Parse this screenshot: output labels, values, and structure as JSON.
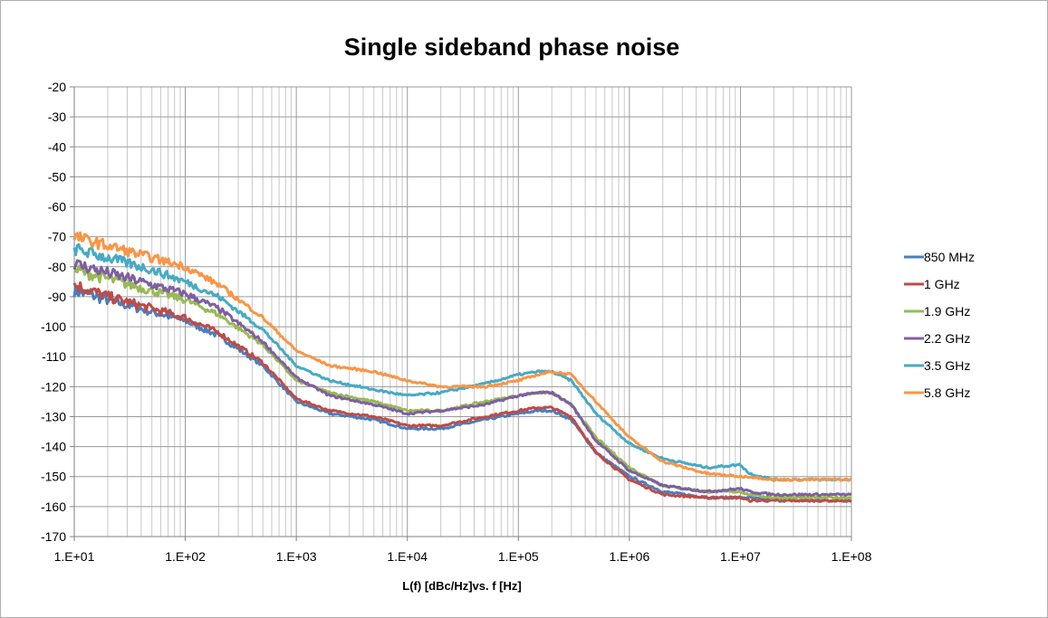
{
  "chart_data": {
    "type": "line",
    "title": "Single sideband phase noise",
    "xlabel": "L(f) [dBc/Hz]vs. f [Hz]",
    "ylabel": "",
    "x_scale": "log",
    "xlim": [
      10,
      100000000
    ],
    "ylim": [
      -170,
      -20
    ],
    "x_tick_labels": [
      "1.E+01",
      "1.E+02",
      "1.E+03",
      "1.E+04",
      "1.E+05",
      "1.E+06",
      "1.E+07",
      "1.E+08"
    ],
    "y_ticks": [
      -20,
      -30,
      -40,
      -50,
      -60,
      -70,
      -80,
      -90,
      -100,
      -110,
      -120,
      -130,
      -140,
      -150,
      -160,
      -170
    ],
    "grid": true,
    "legend_position": "right",
    "x": [
      10,
      20,
      50,
      100,
      200,
      500,
      1000,
      2000,
      5000,
      10000,
      20000,
      50000,
      100000,
      150000,
      200000,
      300000,
      500000,
      1000000,
      2000000,
      5000000,
      10000000,
      12000000,
      20000000,
      50000000,
      100000000
    ],
    "series": [
      {
        "name": "850 MHz",
        "color": "#4a7ebb",
        "values": [
          -88,
          -91,
          -95,
          -98,
          -103,
          -113,
          -125,
          -129,
          -131,
          -134,
          -134,
          -131,
          -129,
          -128,
          -128,
          -131,
          -142,
          -150,
          -155,
          -157,
          -157,
          -157,
          -158,
          -158,
          -158
        ]
      },
      {
        "name": "1 GHz",
        "color": "#be4b48",
        "values": [
          -86,
          -90,
          -94,
          -97,
          -102,
          -112,
          -124,
          -128,
          -130,
          -133,
          -133,
          -130,
          -128,
          -127,
          -127,
          -130,
          -142,
          -151,
          -156,
          -157,
          -157,
          -158,
          -158,
          -158,
          -158
        ]
      },
      {
        "name": "1.9 GHz",
        "color": "#98b954",
        "values": [
          -81,
          -84,
          -88,
          -91,
          -96,
          -106,
          -118,
          -122,
          -125,
          -128,
          -128,
          -125,
          -123,
          -122,
          -122,
          -126,
          -137,
          -147,
          -153,
          -155,
          -155,
          -156,
          -157,
          -157,
          -157
        ]
      },
      {
        "name": "2.2 GHz",
        "color": "#7d60a0",
        "values": [
          -79,
          -82,
          -86,
          -89,
          -94,
          -105,
          -117,
          -123,
          -126,
          -129,
          -128,
          -126,
          -123,
          -122,
          -122,
          -126,
          -138,
          -148,
          -153,
          -155,
          -154,
          -155,
          -156,
          -156,
          -156
        ]
      },
      {
        "name": "3.5 GHz",
        "color": "#46aac5",
        "values": [
          -74,
          -77,
          -81,
          -85,
          -90,
          -101,
          -113,
          -118,
          -121,
          -123,
          -122,
          -119,
          -116,
          -115,
          -115,
          -118,
          -129,
          -139,
          -144,
          -147,
          -146,
          -149,
          -151,
          -151,
          -151
        ]
      },
      {
        "name": "5.8 GHz",
        "color": "#f79646",
        "values": [
          -70,
          -73,
          -77,
          -80,
          -86,
          -97,
          -108,
          -113,
          -115,
          -118,
          -120,
          -120,
          -118,
          -116,
          -115,
          -116,
          -125,
          -137,
          -145,
          -149,
          -150,
          -150,
          -151,
          -151,
          -151
        ]
      }
    ]
  }
}
